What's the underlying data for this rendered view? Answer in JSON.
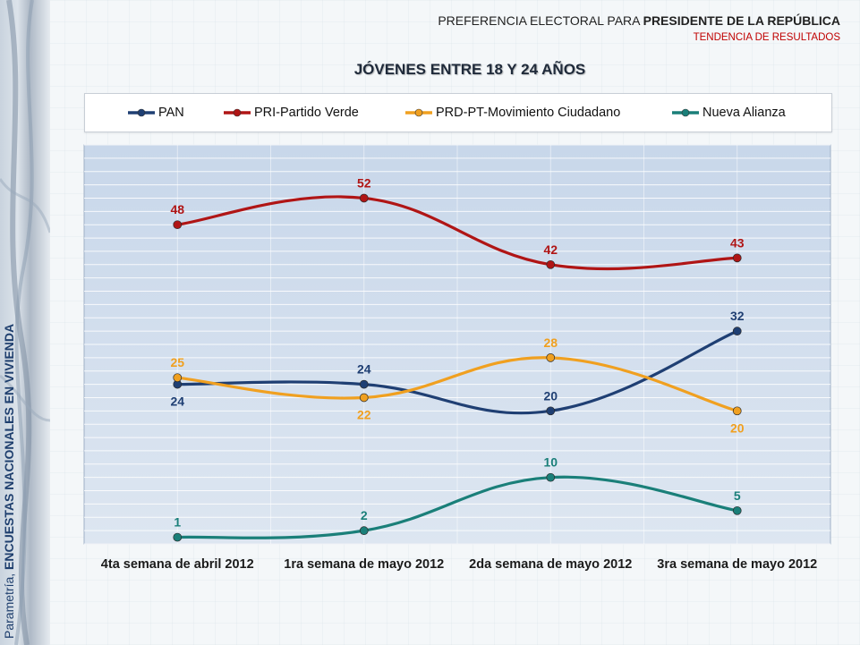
{
  "header": {
    "title_prefix": "PREFERENCIA ELECTORAL PARA ",
    "title_strong": "PRESIDENTE DE LA REPÚBLICA",
    "subtitle": "TENDENCIA DE RESULTADOS"
  },
  "side_caption": {
    "prefix": "Parametría, ",
    "strong": "ENCUESTAS NACIONALES EN VIVIENDA"
  },
  "chart_data": {
    "type": "line",
    "title": "JÓVENES ENTRE 18 Y 24 AÑOS",
    "categories": [
      "4ta semana de abril 2012",
      "1ra semana de mayo 2012",
      "2da semana de mayo 2012",
      "3ra semana de mayo 2012"
    ],
    "series": [
      {
        "name": "PAN",
        "color": "#1f3f73",
        "values": [
          24,
          24,
          20,
          32
        ]
      },
      {
        "name": "PRI-Partido Verde",
        "color": "#b01515",
        "values": [
          48,
          52,
          42,
          43
        ]
      },
      {
        "name": "PRD-PT-Movimiento Ciudadano",
        "color": "#f0a020",
        "values": [
          25,
          22,
          28,
          20
        ]
      },
      {
        "name": "Nueva Alianza",
        "color": "#1a7f79",
        "values": [
          1,
          2,
          10,
          5
        ]
      }
    ],
    "ylim": [
      0,
      60
    ],
    "grid": true,
    "legend": "top"
  }
}
